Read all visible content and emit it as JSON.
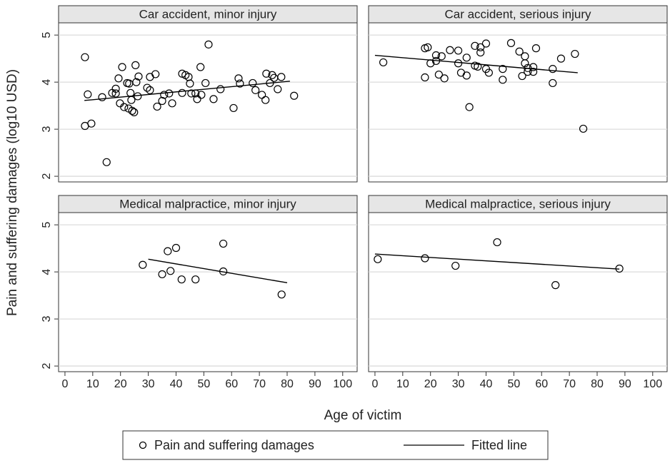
{
  "ylabel": "Pain and suffering damages (log10 USD)",
  "xlabel": "Age of victim",
  "chart_data": [
    {
      "type": "scatter",
      "title": "Car accident, minor injury",
      "xlim": [
        -2.3,
        105.2
      ],
      "ylim": [
        1.88,
        5.26
      ],
      "xticks": [
        0,
        10,
        20,
        30,
        40,
        50,
        60,
        70,
        80,
        90,
        100
      ],
      "yticks": [
        2,
        3,
        4,
        5
      ],
      "grid": true,
      "series": [
        {
          "name": "Pain and suffering damages",
          "color": "#000000",
          "x": [
            7.2,
            8.2,
            7.2,
            9.5,
            13.4,
            15,
            17,
            18.3,
            18.3,
            19.3,
            19.8,
            20.6,
            21.3,
            22.4,
            22.9,
            23.1,
            23.6,
            23.9,
            24.2,
            24.9,
            25.4,
            25.7,
            26.5,
            26.2,
            29.6,
            30.6,
            30.6,
            32.6,
            33.2,
            35,
            35.7,
            37.5,
            38.6,
            42.2,
            42.2,
            43.4,
            44.5,
            45,
            45.5,
            47,
            47.6,
            48.8,
            49.1,
            50.6,
            51.7,
            53.5,
            56,
            60.7,
            62.5,
            63,
            67.6,
            68.6,
            70.9,
            72.2,
            72.5,
            73.8,
            74.6,
            75.3,
            76.6,
            77.9,
            82.5
          ],
          "values": [
            4.53,
            3.74,
            3.07,
            3.12,
            3.68,
            2.3,
            3.77,
            3.86,
            3.76,
            4.08,
            3.55,
            4.32,
            3.47,
            3.98,
            3.44,
            3.97,
            3.77,
            3.62,
            3.39,
            3.36,
            4.36,
            4.0,
            4.12,
            3.7,
            3.88,
            4.11,
            3.83,
            4.17,
            3.48,
            3.6,
            3.73,
            3.76,
            3.55,
            4.18,
            3.77,
            4.15,
            4.11,
            3.97,
            3.76,
            3.76,
            3.64,
            4.32,
            3.73,
            3.98,
            4.8,
            3.64,
            3.85,
            3.45,
            4.08,
            3.97,
            3.98,
            3.83,
            3.73,
            3.62,
            4.18,
            3.98,
            4.15,
            4.09,
            3.85,
            4.11,
            3.71
          ]
        },
        {
          "name": "Fitted line",
          "color": "#000000",
          "x": [
            7,
            81
          ],
          "values": [
            3.61,
            4.02
          ]
        }
      ]
    },
    {
      "type": "scatter",
      "title": "Car accident, serious injury",
      "xlim": [
        -2.3,
        105.2
      ],
      "ylim": [
        1.88,
        5.26
      ],
      "xticks": [
        0,
        10,
        20,
        30,
        40,
        50,
        60,
        70,
        80,
        90,
        100
      ],
      "yticks": [
        2,
        3,
        4,
        5
      ],
      "grid": true,
      "series": [
        {
          "name": "Pain and suffering damages",
          "color": "#000000",
          "x": [
            3,
            18,
            19,
            18,
            20,
            22,
            22,
            23,
            24,
            25,
            27,
            30,
            30,
            31,
            33,
            33,
            34,
            36,
            36,
            37,
            38,
            38,
            40,
            40,
            41,
            46,
            46,
            49,
            52,
            53,
            54,
            54,
            55,
            55,
            57,
            57,
            58,
            64,
            64,
            67,
            72,
            75
          ],
          "values": [
            4.42,
            4.72,
            4.74,
            4.1,
            4.4,
            4.45,
            4.57,
            4.16,
            4.55,
            4.08,
            4.68,
            4.67,
            4.4,
            4.2,
            4.52,
            4.14,
            3.47,
            4.77,
            4.35,
            4.33,
            4.74,
            4.63,
            4.82,
            4.28,
            4.2,
            4.28,
            4.05,
            4.83,
            4.65,
            4.13,
            4.55,
            4.4,
            4.3,
            4.22,
            4.32,
            4.22,
            4.72,
            4.28,
            3.98,
            4.5,
            4.6,
            3.01
          ]
        },
        {
          "name": "Fitted line",
          "color": "#000000",
          "x": [
            0,
            73
          ],
          "values": [
            4.57,
            4.2
          ]
        }
      ]
    },
    {
      "type": "scatter",
      "title": "Medical malpractice, minor injury",
      "xlim": [
        -2.3,
        105.2
      ],
      "ylim": [
        1.88,
        5.26
      ],
      "xticks": [
        0,
        10,
        20,
        30,
        40,
        50,
        60,
        70,
        80,
        90,
        100
      ],
      "yticks": [
        2,
        3,
        4,
        5
      ],
      "grid": true,
      "series": [
        {
          "name": "Pain and suffering damages",
          "color": "#000000",
          "x": [
            28,
            35,
            37,
            38,
            40,
            42,
            47,
            57,
            57,
            78
          ],
          "values": [
            4.15,
            3.95,
            4.44,
            4.02,
            4.51,
            3.84,
            3.84,
            4.6,
            4.01,
            3.52
          ]
        },
        {
          "name": "Fitted line",
          "color": "#000000",
          "x": [
            30,
            80
          ],
          "values": [
            4.27,
            3.77
          ]
        }
      ]
    },
    {
      "type": "scatter",
      "title": "Medical malpractice, serious injury",
      "xlim": [
        -2.3,
        105.2
      ],
      "ylim": [
        1.88,
        5.26
      ],
      "xticks": [
        0,
        10,
        20,
        30,
        40,
        50,
        60,
        70,
        80,
        90,
        100
      ],
      "yticks": [
        2,
        3,
        4,
        5
      ],
      "grid": true,
      "series": [
        {
          "name": "Pain and suffering damages",
          "color": "#000000",
          "x": [
            1,
            18,
            29,
            44,
            65,
            88
          ],
          "values": [
            4.27,
            4.29,
            4.13,
            4.63,
            3.72,
            4.07
          ]
        },
        {
          "name": "Fitted line",
          "color": "#000000",
          "x": [
            0,
            88
          ],
          "values": [
            4.38,
            4.06
          ]
        }
      ]
    }
  ]
}
